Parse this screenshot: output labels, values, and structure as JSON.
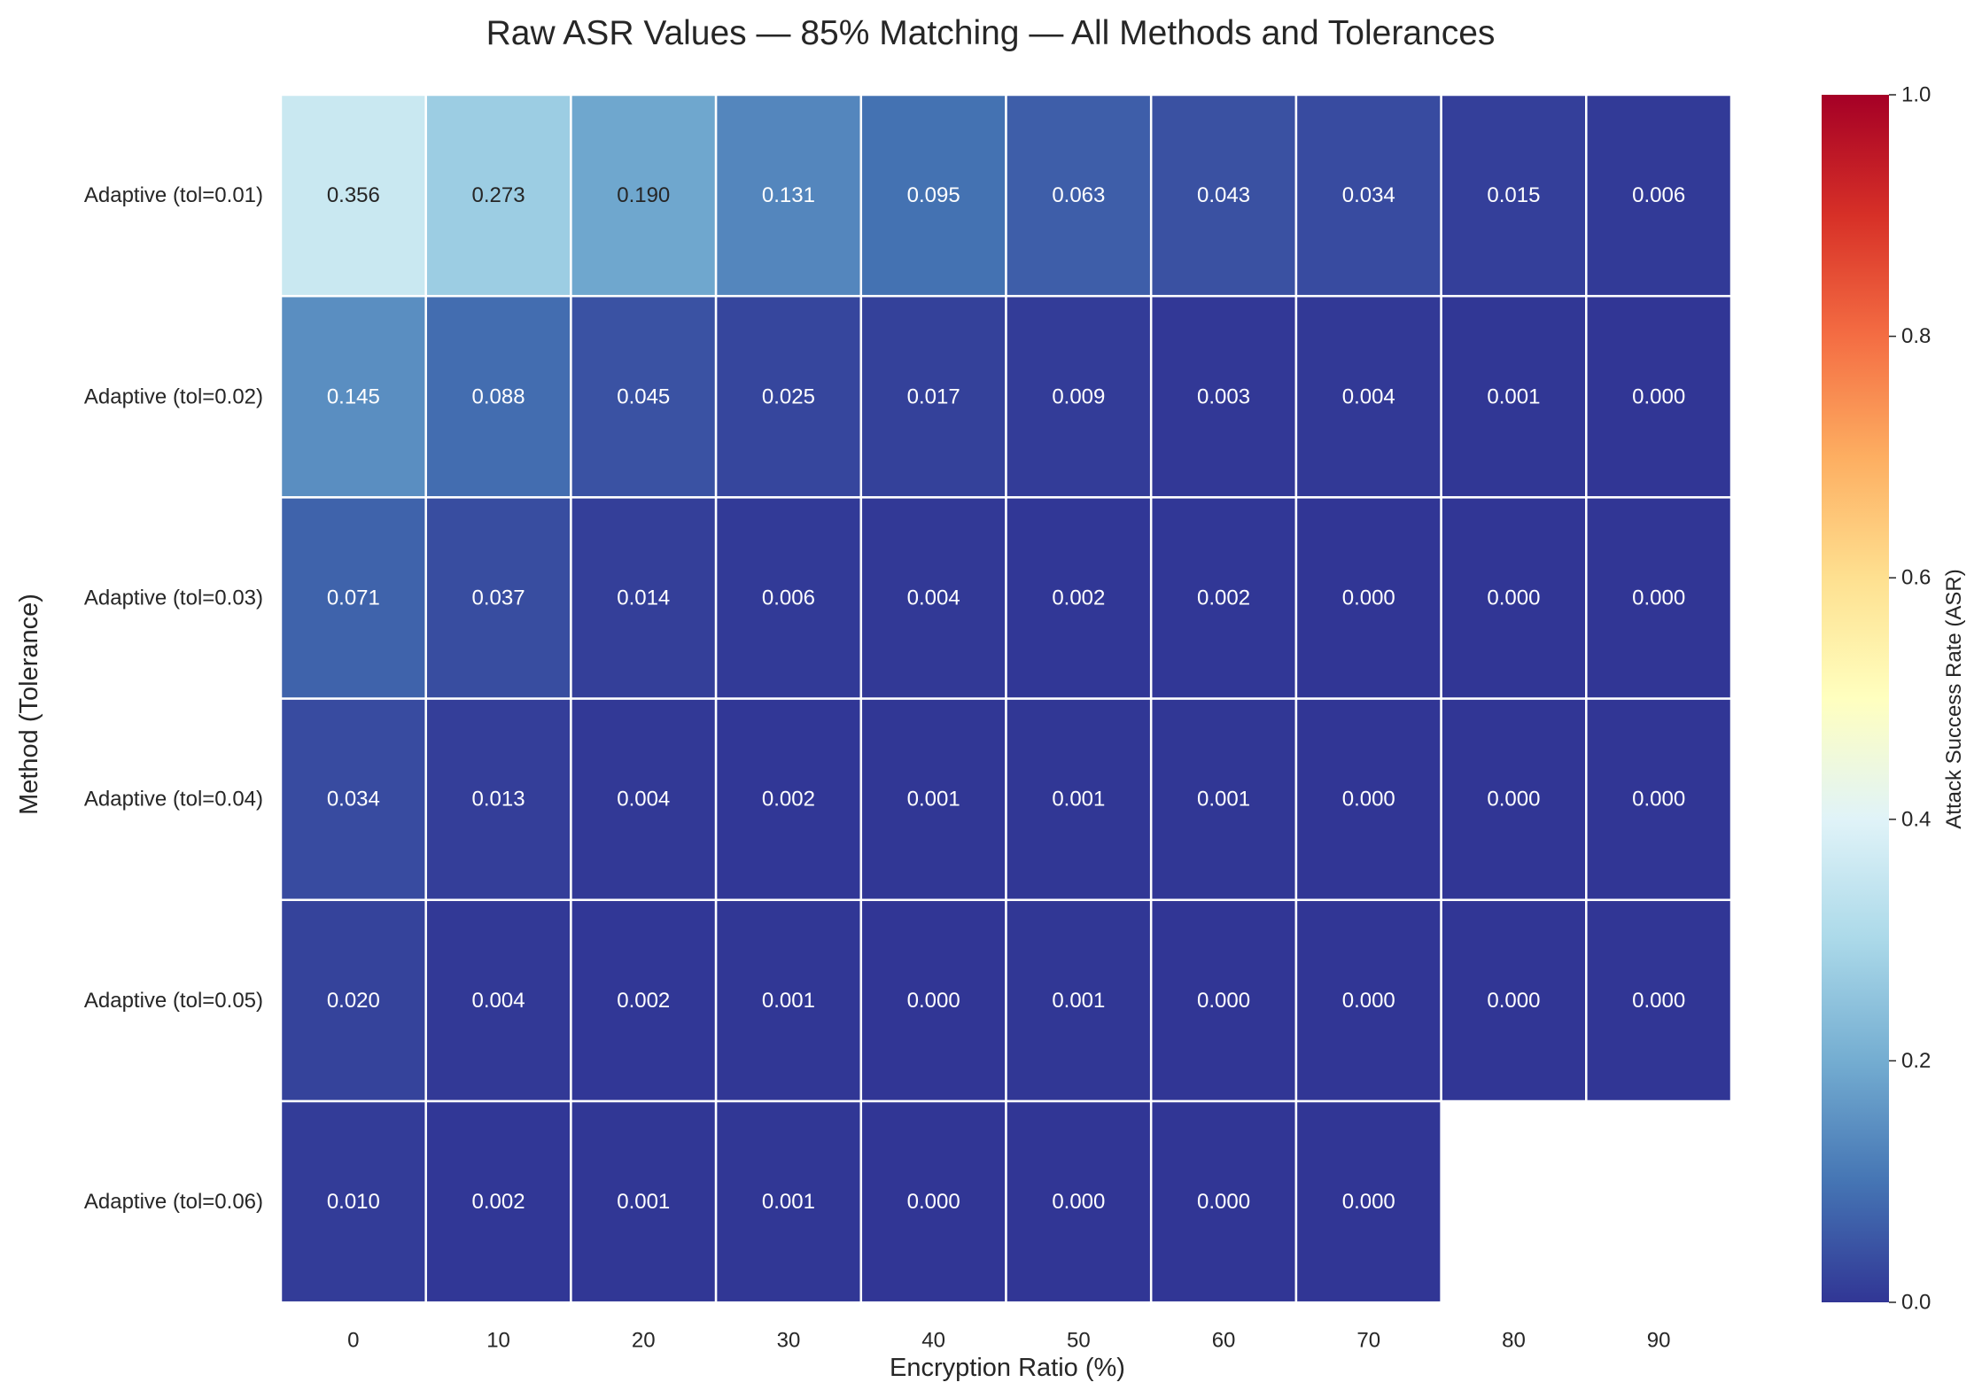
{
  "chart_data": {
    "type": "heatmap",
    "title": "Raw ASR Values — 85% Matching — All Methods and Tolerances",
    "xlabel": "Encryption Ratio (%)",
    "ylabel": "Method (Tolerance)",
    "x_categories": [
      "0",
      "10",
      "20",
      "30",
      "40",
      "50",
      "60",
      "70",
      "80",
      "90"
    ],
    "y_categories": [
      "Adaptive (tol=0.01)",
      "Adaptive (tol=0.02)",
      "Adaptive (tol=0.03)",
      "Adaptive (tol=0.04)",
      "Adaptive (tol=0.05)",
      "Adaptive (tol=0.06)"
    ],
    "values": [
      [
        0.356,
        0.273,
        0.19,
        0.131,
        0.095,
        0.063,
        0.043,
        0.034,
        0.015,
        0.006
      ],
      [
        0.145,
        0.088,
        0.045,
        0.025,
        0.017,
        0.009,
        0.003,
        0.004,
        0.001,
        0.0
      ],
      [
        0.071,
        0.037,
        0.014,
        0.006,
        0.004,
        0.002,
        0.002,
        0.0,
        0.0,
        0.0
      ],
      [
        0.034,
        0.013,
        0.004,
        0.002,
        0.001,
        0.001,
        0.001,
        0.0,
        0.0,
        0.0
      ],
      [
        0.02,
        0.004,
        0.002,
        0.001,
        0.0,
        0.001,
        0.0,
        0.0,
        0.0,
        0.0
      ],
      [
        0.01,
        0.002,
        0.001,
        0.001,
        0.0,
        0.0,
        0.0,
        0.0,
        null,
        null
      ]
    ],
    "colormap": "RdYlBu_r",
    "color_range": [
      0,
      1
    ],
    "colorbar": {
      "label": "Attack Success Rate (ASR)",
      "ticks": [
        "0.0",
        "0.2",
        "0.4",
        "0.6",
        "0.8",
        "1.0"
      ],
      "placement": "right"
    },
    "grid": false
  }
}
